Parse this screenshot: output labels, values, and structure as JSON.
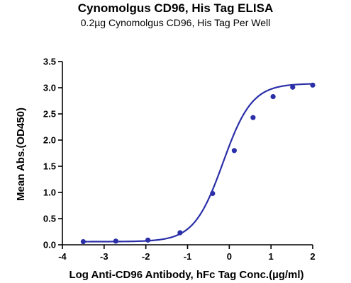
{
  "chart_data": {
    "type": "scatter",
    "title": "Cynomolgus CD96, His Tag ELISA",
    "subtitle": "0.2µg Cynomolgus CD96, His Tag Per Well",
    "xlabel": "Log Anti-CD96 Antibody, hFc Tag Conc.(µg/ml)",
    "ylabel": "Mean Abs.(OD450)",
    "xlim": [
      -4,
      2
    ],
    "ylim": [
      0,
      3.5
    ],
    "xticks": [
      -4,
      -3,
      -2,
      -1,
      0,
      1,
      2
    ],
    "yticks": [
      0.0,
      0.5,
      1.0,
      1.5,
      2.0,
      2.5,
      3.0,
      3.5
    ],
    "x_tick_labels": [
      "-4",
      "-3",
      "-2",
      "-1",
      "0",
      "1",
      "2"
    ],
    "y_tick_labels": [
      "0.0",
      "0.5",
      "1.0",
      "1.5",
      "2.0",
      "2.5",
      "3.0",
      "3.5"
    ],
    "grid": false,
    "series": [
      {
        "color": "#2b2fa8",
        "fit": "four-parameter logistic",
        "x": [
          -3.5,
          -2.72,
          -1.95,
          -1.18,
          -0.4,
          0.12,
          0.57,
          1.05,
          1.52,
          2.0
        ],
        "y": [
          0.06,
          0.07,
          0.09,
          0.23,
          0.98,
          1.8,
          2.43,
          2.83,
          3.01,
          3.05
        ]
      }
    ],
    "curve": {
      "bottom": 0.06,
      "top": 3.08,
      "logEC50": -0.15,
      "hillslope": 1.25
    }
  }
}
